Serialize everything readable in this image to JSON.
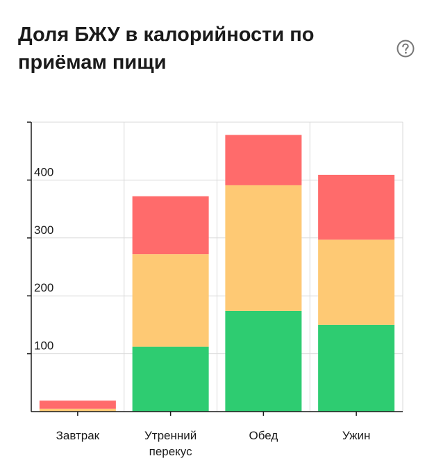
{
  "header": {
    "title": "Доля БЖУ в калорийности по приёмам пищи",
    "help_icon": "question-circle-icon"
  },
  "chart_data": {
    "type": "bar",
    "stacked": true,
    "title": "Доля БЖУ в калорийности по приёмам пищи",
    "categories": [
      [
        "Завтрак"
      ],
      [
        "Утренний",
        "перекус"
      ],
      [
        "Обед"
      ],
      [
        "Ужин"
      ]
    ],
    "series": [
      {
        "color": "#2ecc71",
        "values": [
          0,
          112,
          174,
          150
        ]
      },
      {
        "color": "#fec974",
        "values": [
          5,
          160,
          217,
          147
        ]
      },
      {
        "color": "#ff6b6b",
        "values": [
          14,
          100,
          87,
          112
        ]
      }
    ],
    "yticks": [
      100,
      200,
      300,
      400
    ],
    "ylim": [
      0,
      500
    ],
    "grid": true,
    "legend": "none"
  }
}
